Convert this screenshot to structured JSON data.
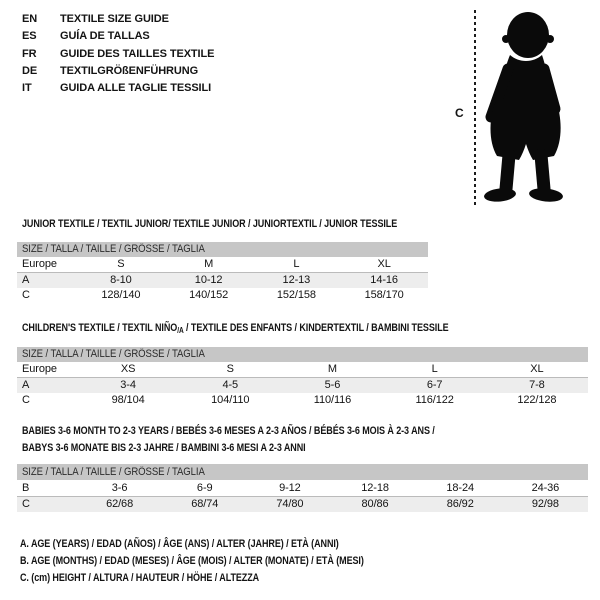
{
  "languages": [
    {
      "code": "EN",
      "title": "TEXTILE SIZE GUIDE"
    },
    {
      "code": "ES",
      "title": "GUÍA DE TALLAS"
    },
    {
      "code": "FR",
      "title": "GUIDE DES TAILLES TEXTILE"
    },
    {
      "code": "DE",
      "title": "TEXTILGRÖßENFÜHRUNG"
    },
    {
      "code": "IT",
      "title": "GUIDA ALLE TAGLIE TESSILI"
    }
  ],
  "figure": {
    "label": "C",
    "icon": "baby-silhouette-icon"
  },
  "tables": [
    {
      "title_lines": [
        [
          {
            "t": "JUNIOR TEXTILE / TEXTIL JUNIOR/ TEXTILE JUNIOR / JUNIORTEXTIL / JUNIOR TESSILE"
          }
        ]
      ],
      "size_header": "SIZE / TALLA / TAILLE / GRÖSSE / TAGLIA",
      "rows": [
        {
          "label": "Europe",
          "values": [
            "S",
            "M",
            "L",
            "XL"
          ]
        },
        {
          "label": "A",
          "values": [
            "8-10",
            "10-12",
            "12-13",
            "14-16"
          ]
        },
        {
          "label": "C",
          "values": [
            "128/140",
            "140/152",
            "152/158",
            "158/170"
          ]
        }
      ]
    },
    {
      "title_lines": [
        [
          {
            "t": "CHILDREN'S TEXTILE / TEXTIL NIÑO"
          },
          {
            "t": "/A",
            "sub": true
          },
          {
            "t": " / TEXTILE DES ENFANTS / KINDERTEXTIL / BAMBINI TESSILE"
          }
        ]
      ],
      "size_header": "SIZE / TALLA / TAILLE / GRÖSSE / TAGLIA",
      "rows": [
        {
          "label": "Europe",
          "values": [
            "XS",
            "S",
            "M",
            "L",
            "XL"
          ]
        },
        {
          "label": "A",
          "values": [
            "3-4",
            "4-5",
            "5-6",
            "6-7",
            "7-8"
          ]
        },
        {
          "label": "C",
          "values": [
            "98/104",
            "104/110",
            "110/116",
            "116/122",
            "122/128"
          ]
        }
      ]
    },
    {
      "title_lines": [
        [
          {
            "t": "BABIES 3-6 MONTH TO 2-3 YEARS / BEBÉS 3-6 MESES A 2-3 AÑOS / BÉBÉS 3-6 MOIS À 2-3 ANS /"
          }
        ],
        [
          {
            "t": "BABYS 3-6 MONATE BIS 2-3 JAHRE / BAMBINI 3-6 MESI A 2-3 ANNI"
          }
        ]
      ],
      "size_header": "SIZE / TALLA / TAILLE / GRÖSSE / TAGLIA",
      "rows": [
        {
          "label": "B",
          "values": [
            "3-6",
            "6-9",
            "9-12",
            "12-18",
            "18-24",
            "24-36"
          ]
        },
        {
          "label": "C",
          "values": [
            "62/68",
            "68/74",
            "74/80",
            "80/86",
            "86/92",
            "92/98"
          ]
        }
      ]
    }
  ],
  "legend": [
    "A. AGE (YEARS) / EDAD (AÑOS) / ÂGE (ANS) / ALTER (JAHRE) / ETÀ (ANNI)",
    "B. AGE (MONTHS) / EDAD (MESES) / ÂGE (MOIS) / ALTER (MONATE) / ETÀ (MESI)",
    "C. (cm) HEIGHT / ALTURA / HAUTEUR / HÖHE / ALTEZZA"
  ],
  "colors": {
    "header_bar": "#c6c6c6",
    "row_alt": "#ededed",
    "rule": "#bbbbbb",
    "text": "#141414"
  }
}
